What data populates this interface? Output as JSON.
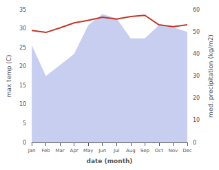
{
  "chart_data": {
    "type": "line",
    "xlabel": "date (month)",
    "ylabel": "max temp (C)",
    "y2label": "med. precipitation (kg/m2)",
    "categories": [
      "Jan",
      "Feb",
      "Mar",
      "Apr",
      "May",
      "Jun",
      "Jul",
      "Aug",
      "Sep",
      "Oct",
      "Nov",
      "Dec"
    ],
    "series": [
      {
        "type": "area",
        "axis": "y2",
        "color": "#aab4e8",
        "values": [
          44,
          30,
          35,
          40,
          53,
          58,
          56,
          47,
          47,
          53,
          52,
          50
        ]
      },
      {
        "type": "line",
        "color": "#c0392b",
        "values": [
          29.5,
          29.0,
          30.2,
          31.5,
          32.2,
          33.0,
          32.5,
          33.2,
          33.5,
          31.0,
          30.5,
          31.0
        ]
      }
    ],
    "ylim": [
      0,
      35
    ],
    "yticks": [
      0,
      5,
      10,
      15,
      20,
      25,
      30,
      35
    ],
    "y2lim": [
      0,
      60
    ],
    "y2ticks": [
      0,
      10,
      20,
      30,
      40,
      50,
      60
    ],
    "grid": false
  }
}
